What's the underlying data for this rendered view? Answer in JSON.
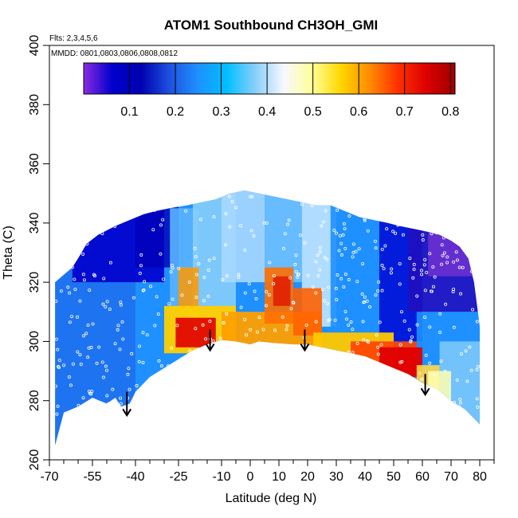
{
  "chart_data": {
    "type": "heatmap",
    "title": "ATOM1 Southbound CH3OH_GMI",
    "annotations": [
      "Flts: 2,3,4,5,6",
      "MMDD: 0801,0803,0806,0808,0812"
    ],
    "xlabel": "Latitude (deg N)",
    "ylabel": "Theta (C)",
    "xlim": [
      -70,
      85
    ],
    "ylim": [
      260,
      400
    ],
    "xticks_major": [
      -70,
      -55,
      -40,
      -25,
      -10,
      0,
      10,
      20,
      30,
      40,
      50,
      60,
      70,
      80
    ],
    "xtick_labels": [
      "-70",
      "-55",
      "-40",
      "-25",
      "-10",
      "0",
      "10",
      "20",
      "30",
      "40",
      "50",
      "60",
      "70",
      "80"
    ],
    "xticks_minor": [
      -65,
      -60,
      -50,
      -45,
      -35,
      -30,
      -20,
      -15,
      -5,
      5,
      15,
      25,
      35,
      45,
      55,
      65,
      75,
      85
    ],
    "yticks": [
      260,
      280,
      300,
      320,
      340,
      360,
      380,
      400
    ],
    "ytick_labels": [
      "260",
      "280",
      "300",
      "320",
      "340",
      "360",
      "380",
      "400"
    ],
    "colorbar": {
      "range": [
        0,
        0.81
      ],
      "ticks": [
        0.1,
        0.2,
        0.3,
        0.4,
        0.5,
        0.6,
        0.7,
        0.8
      ],
      "tick_labels": [
        "0.1",
        "0.2",
        "0.3",
        "0.4",
        "0.5",
        "0.6",
        "0.7",
        "0.8"
      ],
      "colors": [
        "#8a2be2",
        "#0000cd",
        "#0000b0",
        "#1e50e0",
        "#1e90ff",
        "#00bfff",
        "#87cefa",
        "#f8f8ff",
        "#ffff99",
        "#ffd700",
        "#ff8c00",
        "#ff3000",
        "#dc0000",
        "#a00000"
      ]
    },
    "surface_theta": [
      [
        -68,
        265
      ],
      [
        -65,
        276
      ],
      [
        -60,
        278
      ],
      [
        -55,
        281
      ],
      [
        -50,
        279
      ],
      [
        -47,
        281
      ],
      [
        -45,
        278
      ],
      [
        -42,
        279
      ],
      [
        -40,
        283
      ],
      [
        -35,
        288
      ],
      [
        -30,
        291
      ],
      [
        -25,
        294
      ],
      [
        -20,
        297
      ],
      [
        -15,
        299
      ],
      [
        -10,
        300.5
      ],
      [
        -5,
        300
      ],
      [
        0,
        299
      ],
      [
        3,
        300
      ],
      [
        8,
        299.5
      ],
      [
        15,
        299
      ],
      [
        20,
        299
      ],
      [
        25,
        298
      ],
      [
        30,
        297
      ],
      [
        35,
        296
      ],
      [
        40,
        295
      ],
      [
        45,
        293
      ],
      [
        50,
        291
      ],
      [
        55,
        289
      ],
      [
        60,
        286
      ],
      [
        65,
        284
      ],
      [
        70,
        280
      ],
      [
        75,
        277
      ],
      [
        78,
        274
      ],
      [
        80,
        272
      ]
    ],
    "top_theta": [
      [
        -68,
        320
      ],
      [
        -62,
        325
      ],
      [
        -60,
        328
      ],
      [
        -57,
        333
      ],
      [
        -53,
        336
      ],
      [
        -47,
        339
      ],
      [
        -42,
        341
      ],
      [
        -37,
        343
      ],
      [
        -33,
        344
      ],
      [
        -28,
        345
      ],
      [
        -22,
        346
      ],
      [
        -17,
        347
      ],
      [
        -12,
        348
      ],
      [
        -7,
        350
      ],
      [
        -2,
        351
      ],
      [
        3,
        350
      ],
      [
        8,
        349
      ],
      [
        13,
        348
      ],
      [
        18,
        347
      ],
      [
        23,
        346
      ],
      [
        28,
        346
      ],
      [
        33,
        344
      ],
      [
        38,
        342
      ],
      [
        43,
        341
      ],
      [
        48,
        340
      ],
      [
        52,
        339
      ],
      [
        57,
        338
      ],
      [
        62,
        337
      ],
      [
        66,
        336
      ],
      [
        70,
        334
      ],
      [
        73,
        332
      ],
      [
        76,
        328
      ],
      [
        78,
        320
      ],
      [
        80,
        305
      ]
    ],
    "arrows": [
      {
        "lat": -43,
        "theta_start": 283,
        "theta_end": 275
      },
      {
        "lat": -14,
        "theta_start": 304,
        "theta_end": 297
      },
      {
        "lat": 19,
        "theta_start": 304,
        "theta_end": 297
      },
      {
        "lat": 61,
        "theta_start": 289,
        "theta_end": 282
      }
    ]
  }
}
